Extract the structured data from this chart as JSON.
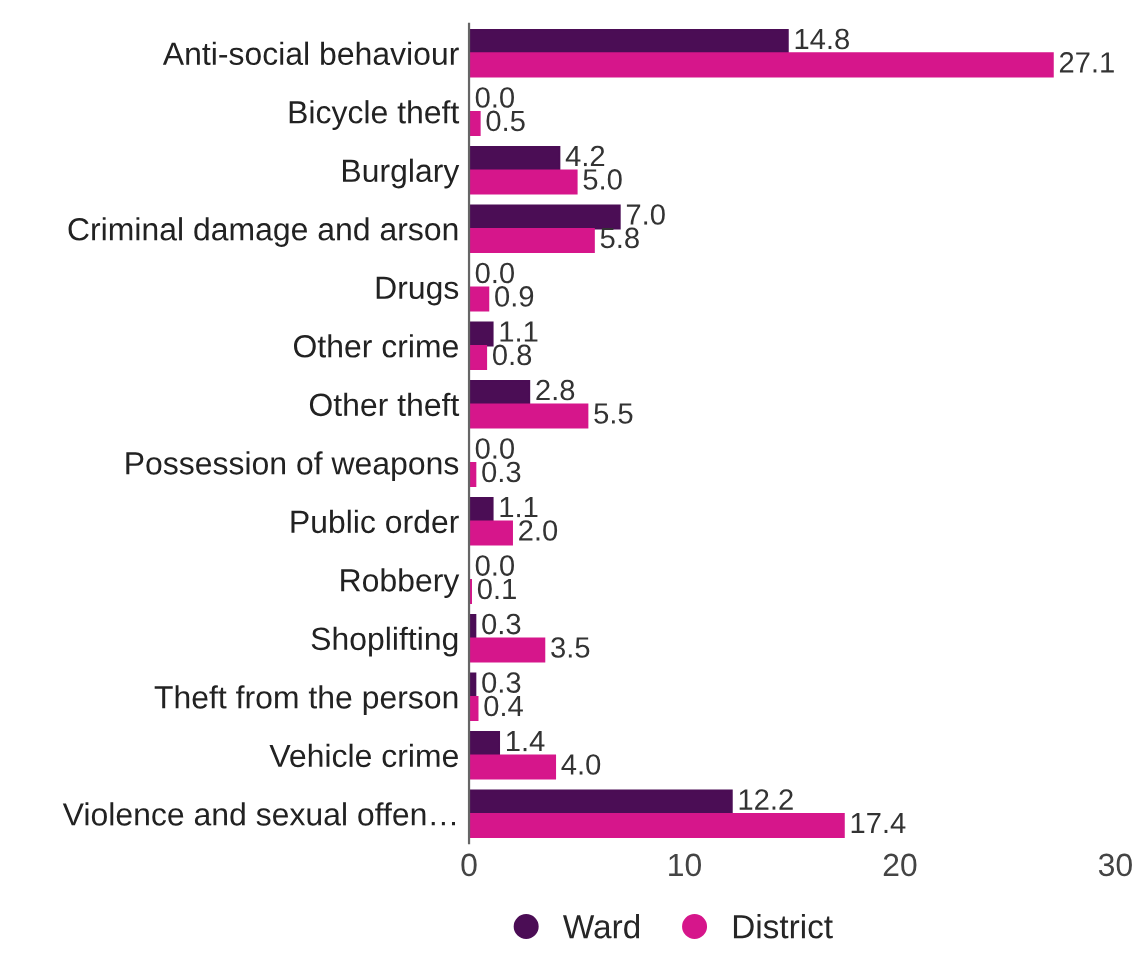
{
  "chart_data": {
    "type": "bar",
    "orientation": "horizontal",
    "categories": [
      "Anti-social behaviour",
      "Bicycle theft",
      "Burglary",
      "Criminal damage and arson",
      "Drugs",
      "Other crime",
      "Other theft",
      "Possession of weapons",
      "Public order",
      "Robbery",
      "Shoplifting",
      "Theft from the person",
      "Vehicle crime",
      "Violence and sexual offen…"
    ],
    "series": [
      {
        "name": "Ward",
        "color": "#4b0d55",
        "values": [
          14.8,
          0.0,
          4.2,
          7.0,
          0.0,
          1.1,
          2.8,
          0.0,
          1.1,
          0.0,
          0.3,
          0.3,
          1.4,
          12.2
        ],
        "value_labels": [
          "14.8",
          "0.0",
          "4.2",
          "7.0",
          "0.0",
          "1.1",
          "2.8",
          "0.0",
          "1.1",
          "0.0",
          "0.3",
          "0.3",
          "1.4",
          "12.2"
        ]
      },
      {
        "name": "District",
        "color": "#d6168b",
        "values": [
          27.1,
          0.5,
          5.0,
          5.8,
          0.9,
          0.8,
          5.5,
          0.3,
          2.0,
          0.1,
          3.5,
          0.4,
          4.0,
          17.4
        ],
        "value_labels": [
          "27.1",
          "0.5",
          "5.0",
          "5.8",
          "0.9",
          "0.8",
          "5.5",
          "0.3",
          "2.0",
          "0.1",
          "3.5",
          "0.4",
          "4.0",
          "17.4"
        ]
      }
    ],
    "xlim": [
      0,
      30
    ],
    "xticks": [
      0,
      10,
      20,
      30
    ],
    "grid": false,
    "legend": "bottom"
  }
}
